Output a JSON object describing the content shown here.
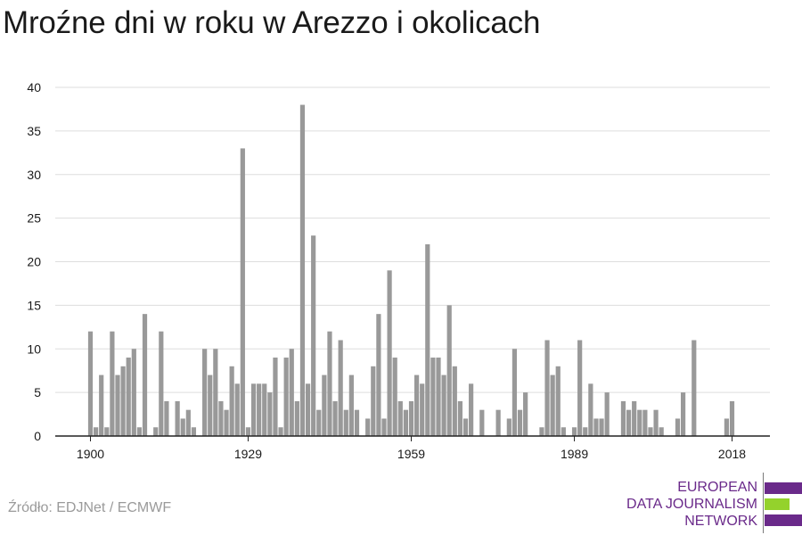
{
  "title": "Mroźne dni w roku w Arezzo i okolicach",
  "source": "Źródło: EDJNet / ECMWF",
  "logo": {
    "line1": "EUROPEAN",
    "line2": "DATA JOURNALISM",
    "line3": "NETWORK",
    "colors": {
      "purple": "#6a2a8a",
      "green": "#94d22c"
    }
  },
  "colors": {
    "bar": "#999999",
    "grid": "#dddddd",
    "axis": "#222222",
    "text": "#1a1a1a",
    "source": "#9a9a9a"
  },
  "chart_data": {
    "type": "bar",
    "title": "Mroźne dni w roku w Arezzo i okolicach",
    "xlabel": "",
    "ylabel": "",
    "ylim": [
      0,
      40
    ],
    "yticks": [
      0,
      5,
      10,
      15,
      20,
      25,
      30,
      35,
      40
    ],
    "xticks": [
      1900,
      1929,
      1959,
      1989,
      2018
    ],
    "grid": true,
    "x": [
      1900,
      1901,
      1902,
      1903,
      1904,
      1905,
      1906,
      1907,
      1908,
      1909,
      1910,
      1911,
      1912,
      1913,
      1914,
      1915,
      1916,
      1917,
      1918,
      1919,
      1920,
      1921,
      1922,
      1923,
      1924,
      1925,
      1926,
      1927,
      1928,
      1929,
      1930,
      1931,
      1932,
      1933,
      1934,
      1935,
      1936,
      1937,
      1938,
      1939,
      1940,
      1941,
      1942,
      1943,
      1944,
      1945,
      1946,
      1947,
      1948,
      1949,
      1950,
      1951,
      1952,
      1953,
      1954,
      1955,
      1956,
      1957,
      1958,
      1959,
      1960,
      1961,
      1962,
      1963,
      1964,
      1965,
      1966,
      1967,
      1968,
      1969,
      1970,
      1971,
      1972,
      1973,
      1974,
      1975,
      1976,
      1977,
      1978,
      1979,
      1980,
      1981,
      1982,
      1983,
      1984,
      1985,
      1986,
      1987,
      1988,
      1989,
      1990,
      1991,
      1992,
      1993,
      1994,
      1995,
      1996,
      1997,
      1998,
      1999,
      2000,
      2001,
      2002,
      2003,
      2004,
      2005,
      2006,
      2007,
      2008,
      2009,
      2010,
      2011,
      2012,
      2013,
      2014,
      2015,
      2016,
      2017,
      2018
    ],
    "values": [
      12,
      1,
      7,
      1,
      12,
      7,
      8,
      9,
      10,
      1,
      14,
      0,
      1,
      12,
      4,
      0,
      4,
      2,
      3,
      1,
      0,
      10,
      7,
      10,
      4,
      3,
      8,
      6,
      33,
      1,
      6,
      6,
      6,
      5,
      9,
      1,
      9,
      10,
      4,
      38,
      6,
      23,
      3,
      7,
      12,
      4,
      11,
      3,
      7,
      3,
      0,
      2,
      8,
      14,
      2,
      19,
      9,
      4,
      3,
      4,
      7,
      6,
      22,
      9,
      9,
      7,
      15,
      8,
      4,
      2,
      6,
      0,
      3,
      0,
      0,
      3,
      0,
      2,
      10,
      3,
      5,
      0,
      0,
      1,
      11,
      7,
      8,
      1,
      0,
      1,
      11,
      1,
      6,
      2,
      2,
      5,
      0,
      0,
      4,
      3,
      4,
      3,
      3,
      1,
      3,
      1,
      0,
      0,
      2,
      5,
      0,
      11,
      0,
      0,
      0,
      0,
      0,
      2,
      4
    ]
  }
}
